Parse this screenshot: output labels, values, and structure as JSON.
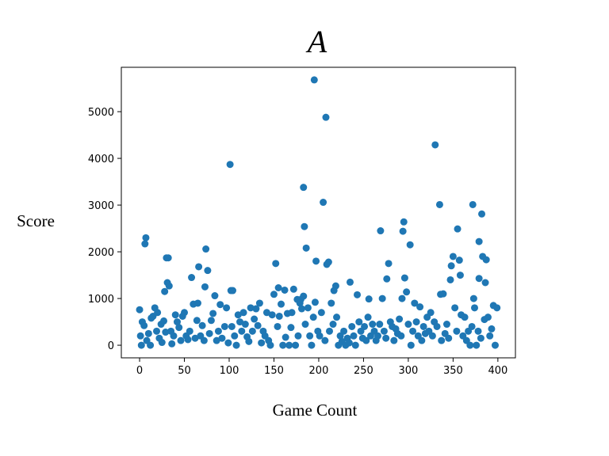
{
  "chart_data": {
    "type": "scatter",
    "title": "A",
    "xlabel": "Game Count",
    "ylabel": "Score",
    "color": "#1f77b4",
    "xlim": [
      -20.4,
      419.6
    ],
    "ylim": [
      -270,
      5950
    ],
    "xticks": [
      0,
      50,
      100,
      150,
      200,
      250,
      300,
      350,
      400
    ],
    "yticks": [
      0,
      1000,
      2000,
      3000,
      4000,
      5000
    ],
    "x": [
      195,
      208,
      101,
      330,
      183,
      205,
      335,
      372,
      382,
      184,
      269,
      295,
      294,
      355,
      7,
      6,
      302,
      74,
      186,
      379,
      197,
      211,
      209,
      152,
      278,
      30,
      32,
      66,
      76,
      348,
      350,
      357,
      383,
      387,
      358,
      347,
      379,
      386,
      296,
      276,
      235,
      31,
      58,
      33,
      28,
      102,
      104,
      73,
      219,
      217,
      155,
      162,
      172,
      150,
      243,
      336,
      339,
      176,
      180,
      183,
      271,
      256,
      298,
      293,
      373,
      0,
      1,
      2,
      3,
      5,
      8,
      10,
      12,
      13,
      15,
      17,
      19,
      20,
      22,
      24,
      25,
      27,
      29,
      35,
      36,
      38,
      40,
      42,
      44,
      46,
      48,
      50,
      52,
      54,
      56,
      60,
      62,
      64,
      65,
      68,
      70,
      72,
      78,
      80,
      82,
      84,
      86,
      88,
      90,
      92,
      95,
      97,
      99,
      103,
      106,
      108,
      110,
      112,
      114,
      116,
      118,
      120,
      122,
      124,
      126,
      128,
      130,
      132,
      134,
      136,
      138,
      140,
      142,
      144,
      146,
      148,
      154,
      156,
      158,
      160,
      163,
      165,
      167,
      169,
      170,
      174,
      177,
      179,
      181,
      185,
      188,
      190,
      192,
      194,
      196,
      199,
      201,
      203,
      207,
      212,
      214,
      216,
      220,
      222,
      224,
      226,
      228,
      230,
      232,
      234,
      237,
      239,
      241,
      245,
      247,
      249,
      251,
      253,
      255,
      258,
      260,
      262,
      264,
      266,
      268,
      273,
      275,
      280,
      282,
      284,
      286,
      288,
      290,
      292,
      300,
      303,
      305,
      307,
      309,
      311,
      313,
      315,
      317,
      319,
      321,
      323,
      325,
      327,
      329,
      332,
      337,
      341,
      343,
      345,
      352,
      354,
      359,
      361,
      363,
      365,
      367,
      369,
      371,
      374,
      376,
      378,
      381,
      385,
      389,
      391,
      393,
      395,
      397,
      399
    ],
    "values": [
      5680,
      4880,
      3870,
      4290,
      3380,
      3060,
      3010,
      3010,
      2810,
      2540,
      2450,
      2640,
      2440,
      2490,
      2300,
      2170,
      2150,
      2060,
      2080,
      2220,
      1800,
      1780,
      1730,
      1750,
      1750,
      1870,
      1870,
      1680,
      1600,
      1700,
      1900,
      1820,
      1900,
      1830,
      1500,
      1400,
      1430,
      1340,
      1440,
      1420,
      1350,
      1340,
      1450,
      1270,
      1150,
      1170,
      1170,
      1250,
      1270,
      1170,
      1230,
      1180,
      1200,
      1090,
      1080,
      1090,
      1100,
      980,
      980,
      1050,
      1000,
      990,
      1140,
      1000,
      1000,
      760,
      200,
      0,
      500,
      420,
      100,
      250,
      0,
      580,
      620,
      800,
      300,
      700,
      150,
      450,
      60,
      520,
      280,
      300,
      30,
      200,
      650,
      500,
      380,
      100,
      620,
      700,
      200,
      120,
      300,
      880,
      150,
      530,
      900,
      200,
      420,
      100,
      250,
      530,
      680,
      1060,
      100,
      300,
      870,
      150,
      400,
      800,
      50,
      400,
      200,
      0,
      650,
      500,
      300,
      700,
      450,
      180,
      80,
      800,
      300,
      560,
      780,
      420,
      900,
      50,
      300,
      200,
      700,
      100,
      0,
      650,
      400,
      620,
      880,
      0,
      170,
      680,
      0,
      380,
      700,
      0,
      200,
      900,
      780,
      450,
      800,
      200,
      0,
      600,
      920,
      300,
      200,
      700,
      100,
      300,
      900,
      450,
      600,
      0,
      200,
      80,
      300,
      0,
      150,
      50,
      400,
      200,
      0,
      500,
      300,
      150,
      400,
      100,
      600,
      200,
      450,
      300,
      100,
      200,
      450,
      300,
      150,
      500,
      400,
      100,
      350,
      250,
      560,
      200,
      450,
      0,
      300,
      900,
      500,
      200,
      820,
      100,
      400,
      250,
      600,
      300,
      700,
      200,
      500,
      400,
      100,
      250,
      450,
      150,
      800,
      300,
      650,
      200,
      600,
      100,
      300,
      0,
      400,
      800,
      0,
      300,
      150,
      550,
      600,
      200,
      350,
      850,
      0,
      800
    ]
  }
}
